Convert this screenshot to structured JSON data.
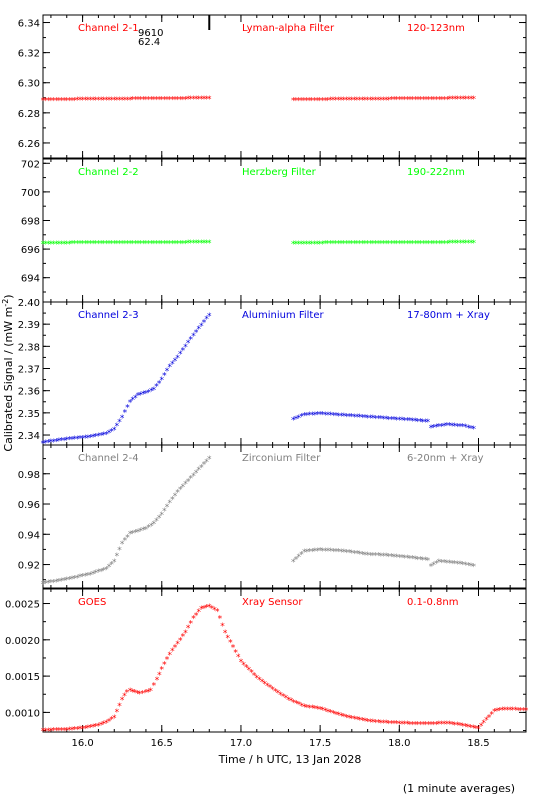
{
  "chart_data": {
    "type": "scatter",
    "title": "",
    "xlabel": "Time / h UTC, 13 Jan 2028",
    "ylabel": "Calibrated Signal / (mW m",
    "ylabel_sup": "-2",
    "ylabel_end": ")",
    "footnote": "(1 minute averages)",
    "xlim": [
      15.75,
      18.8
    ],
    "xticks": [
      16.0,
      16.5,
      17.0,
      17.5,
      18.0,
      18.5
    ],
    "xtick_labels": [
      "16.0",
      "16.5",
      "17.0",
      "17.5",
      "18.0",
      "18.5"
    ],
    "marker": "*",
    "panels": [
      {
        "channel": "Channel 2-1",
        "filter": "Lyman-alpha Filter",
        "band": "120-123nm",
        "color": "#ff0000",
        "ylim": [
          6.25,
          6.345
        ],
        "yticks": [
          6.26,
          6.28,
          6.3,
          6.32,
          6.34
        ],
        "ytick_labels": [
          "6.26",
          "6.28",
          "6.30",
          "6.32",
          "6.34"
        ],
        "annotation": [
          "9610",
          "62.4"
        ],
        "series": [
          {
            "x": [
              15.75,
              16.8
            ],
            "y": [
              6.2885,
              6.2895
            ]
          },
          {
            "x": [
              17.33,
              18.47
            ],
            "y": [
              6.2885,
              6.2895
            ]
          }
        ]
      },
      {
        "channel": "Channel 2-2",
        "filter": "Herzberg Filter",
        "band": "190-222nm",
        "color": "#00ff00",
        "ylim": [
          692.3,
          702.3
        ],
        "yticks": [
          694,
          696,
          698,
          700,
          702
        ],
        "ytick_labels": [
          "694",
          "696",
          "698",
          "700",
          "702"
        ],
        "series": [
          {
            "x": [
              15.75,
              16.8
            ],
            "y": [
              696.4,
              696.45
            ]
          },
          {
            "x": [
              17.33,
              18.47
            ],
            "y": [
              696.4,
              696.45
            ]
          }
        ]
      },
      {
        "channel": "Channel 2-3",
        "filter": "Aluminium Filter",
        "band": "17-80nm + Xray",
        "color": "#0000dd",
        "ylim": [
          2.3355,
          2.4
        ],
        "yticks": [
          2.34,
          2.35,
          2.36,
          2.37,
          2.38,
          2.39,
          2.4
        ],
        "ytick_labels": [
          "2.34",
          "2.35",
          "2.36",
          "2.37",
          "2.38",
          "2.39",
          "2.40"
        ],
        "series": [
          {
            "x": [
              15.75,
              15.9,
              16.05,
              16.15,
              16.2,
              16.25,
              16.3,
              16.35,
              16.4,
              16.45,
              16.5,
              16.55,
              16.6,
              16.7,
              16.8
            ],
            "y": [
              2.3365,
              2.338,
              2.339,
              2.3405,
              2.3425,
              2.348,
              2.355,
              2.358,
              2.359,
              2.3605,
              2.365,
              2.371,
              2.375,
              2.385,
              2.394
            ]
          },
          {
            "x": [
              17.33,
              17.4,
              17.5,
              17.6,
              17.7,
              17.8,
              17.9,
              18.0,
              18.1,
              18.18,
              18.2,
              18.25,
              18.3,
              18.4,
              18.47
            ],
            "y": [
              2.347,
              2.349,
              2.3495,
              2.349,
              2.3485,
              2.348,
              2.3475,
              2.347,
              2.3465,
              2.346,
              2.3435,
              2.344,
              2.3445,
              2.344,
              2.343
            ]
          }
        ]
      },
      {
        "channel": "Channel 2-4",
        "filter": "Zirconium Filter",
        "band": "6-20nm + Xray",
        "color": "#808080",
        "ylim": [
          0.9045,
          0.999
        ],
        "yticks": [
          0.92,
          0.94,
          0.96,
          0.98
        ],
        "ytick_labels": [
          "0.92",
          "0.94",
          "0.96",
          "0.98"
        ],
        "series": [
          {
            "x": [
              15.75,
              15.9,
              16.05,
              16.15,
              16.2,
              16.25,
              16.3,
              16.35,
              16.4,
              16.45,
              16.5,
              16.55,
              16.6,
              16.7,
              16.8
            ],
            "y": [
              0.9075,
              0.91,
              0.9135,
              0.917,
              0.922,
              0.934,
              0.9405,
              0.942,
              0.9435,
              0.947,
              0.953,
              0.961,
              0.968,
              0.979,
              0.99
            ]
          },
          {
            "x": [
              17.33,
              17.4,
              17.5,
              17.6,
              17.7,
              17.8,
              17.9,
              18.0,
              18.1,
              18.18,
              18.2,
              18.25,
              18.3,
              18.4,
              18.47
            ],
            "y": [
              0.922,
              0.9285,
              0.9295,
              0.929,
              0.928,
              0.9265,
              0.926,
              0.925,
              0.924,
              0.923,
              0.919,
              0.922,
              0.9215,
              0.9205,
              0.919
            ]
          }
        ]
      },
      {
        "channel": "GOES",
        "filter": "Xray Sensor",
        "band": "0.1-0.8nm",
        "color": "#ff0000",
        "ylim": [
          0.00073,
          0.0027
        ],
        "yticks": [
          0.001,
          0.0015,
          0.002,
          0.0025
        ],
        "ytick_labels": [
          "0.0010",
          "0.0015",
          "0.0020",
          "0.0025"
        ],
        "series": [
          {
            "x": [
              15.75,
              15.9,
              16.0,
              16.1,
              16.15,
              16.2,
              16.25,
              16.28,
              16.3,
              16.33,
              16.36,
              16.4,
              16.43,
              16.47,
              16.5,
              16.55,
              16.6,
              16.65,
              16.7,
              16.75,
              16.8,
              16.85,
              16.9,
              17.0,
              17.1,
              17.2,
              17.3,
              17.4,
              17.5,
              17.6,
              17.7,
              17.8,
              17.9,
              18.0,
              18.1,
              18.2,
              18.3,
              18.4,
              18.5,
              18.55,
              18.6,
              18.65,
              18.7,
              18.8
            ],
            "y": [
              0.00075,
              0.00076,
              0.00078,
              0.00082,
              0.00086,
              0.00093,
              0.00118,
              0.00128,
              0.0013,
              0.00128,
              0.00126,
              0.00128,
              0.0013,
              0.00145,
              0.0016,
              0.0018,
              0.00195,
              0.0021,
              0.0023,
              0.00243,
              0.00246,
              0.0024,
              0.0021,
              0.0017,
              0.00148,
              0.00132,
              0.00118,
              0.00108,
              0.00105,
              0.00098,
              0.00092,
              0.00088,
              0.00086,
              0.00085,
              0.00084,
              0.00084,
              0.00085,
              0.00082,
              0.00078,
              0.0009,
              0.00102,
              0.00104,
              0.00104,
              0.00103
            ]
          }
        ]
      }
    ]
  }
}
